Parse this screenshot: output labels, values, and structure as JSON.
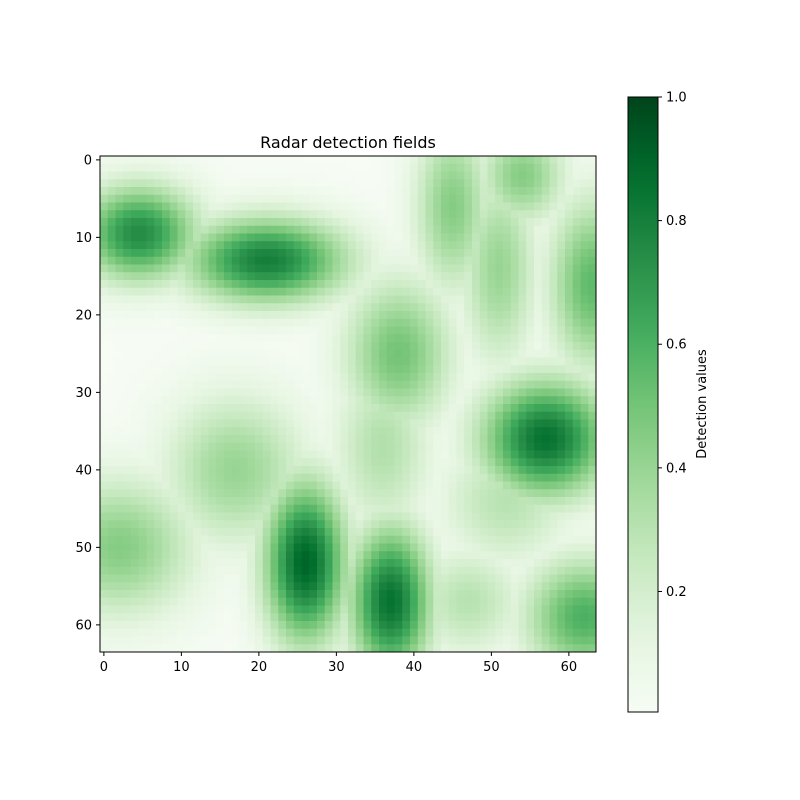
{
  "chart_data": {
    "type": "heatmap",
    "title": "Radar detection fields",
    "xlabel": "",
    "ylabel": "",
    "grid": false,
    "xlim": [
      -0.5,
      63.5
    ],
    "ylim": [
      63.5,
      -0.5
    ],
    "x_ticks": [
      0,
      10,
      20,
      30,
      40,
      50,
      60
    ],
    "y_ticks": [
      0,
      10,
      20,
      30,
      40,
      50,
      60
    ],
    "grid_size": [
      64,
      64
    ],
    "colormap": "Greens",
    "colormap_stops": [
      "#f7fcf5",
      "#e5f5e0",
      "#c7e9c0",
      "#a1d99b",
      "#74c476",
      "#41ab5d",
      "#238b45",
      "#006d2c",
      "#00441b"
    ],
    "value_range": [
      0.0,
      1.0
    ],
    "colorbar": {
      "label": "Detection values",
      "ticks": [
        0.2,
        0.4,
        0.6,
        0.8,
        1.0
      ],
      "tick_labels": [
        "0.2",
        "0.4",
        "0.6",
        "0.8",
        "1.0"
      ],
      "range": [
        0.005,
        1.0
      ]
    },
    "fields": [
      {
        "cx": 4.5,
        "cy": 9.5,
        "sx": 5.5,
        "sy": 4.5,
        "amp": 0.75
      },
      {
        "cx": 21,
        "cy": 13,
        "sx": 7.5,
        "sy": 4.0,
        "amp": 0.8
      },
      {
        "cx": 45,
        "cy": 6,
        "sx": 3.5,
        "sy": 8.0,
        "amp": 0.45
      },
      {
        "cx": 54,
        "cy": 2,
        "sx": 4.0,
        "sy": 4.5,
        "amp": 0.45
      },
      {
        "cx": 51,
        "cy": 14,
        "sx": 3.5,
        "sy": 9.0,
        "amp": 0.4
      },
      {
        "cx": 63,
        "cy": 16,
        "sx": 4.0,
        "sy": 8.0,
        "amp": 0.55
      },
      {
        "cx": 38,
        "cy": 25,
        "sx": 5.0,
        "sy": 7.0,
        "amp": 0.5
      },
      {
        "cx": 36,
        "cy": 37,
        "sx": 4.5,
        "sy": 8.0,
        "amp": 0.32
      },
      {
        "cx": 17,
        "cy": 40,
        "sx": 6.5,
        "sy": 7.0,
        "amp": 0.4
      },
      {
        "cx": 57,
        "cy": 36,
        "sx": 6.0,
        "sy": 5.5,
        "amp": 0.85
      },
      {
        "cx": 2,
        "cy": 50,
        "sx": 7.0,
        "sy": 6.5,
        "amp": 0.45
      },
      {
        "cx": 26,
        "cy": 52,
        "sx": 3.8,
        "sy": 7.5,
        "amp": 0.9
      },
      {
        "cx": 37,
        "cy": 57,
        "sx": 3.8,
        "sy": 7.0,
        "amp": 0.85
      },
      {
        "cx": 47,
        "cy": 57,
        "sx": 5.0,
        "sy": 5.0,
        "amp": 0.3
      },
      {
        "cx": 52,
        "cy": 44,
        "sx": 6.0,
        "sy": 6.0,
        "amp": 0.3
      },
      {
        "cx": 62,
        "cy": 59,
        "sx": 5.5,
        "sy": 5.5,
        "amp": 0.6
      }
    ]
  }
}
